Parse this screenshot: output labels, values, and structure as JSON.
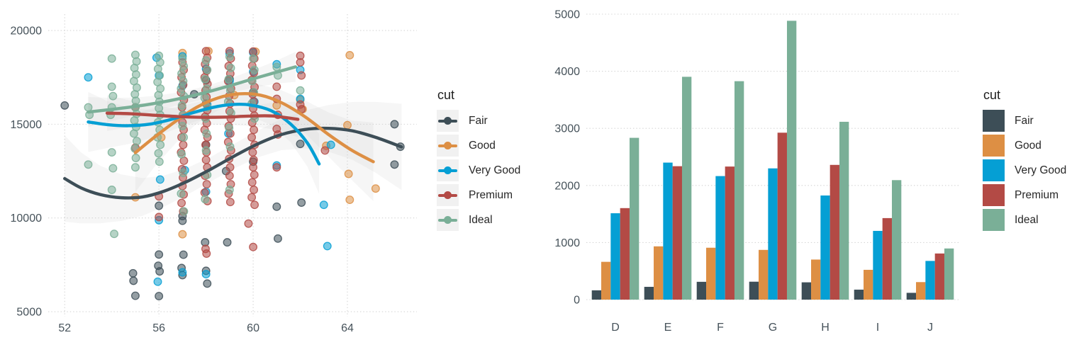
{
  "chart_data": [
    {
      "type": "scatter",
      "title": "",
      "xlabel": "",
      "ylabel": "",
      "xlim": [
        51.3,
        66.95
      ],
      "ylim": [
        4737,
        20870
      ],
      "xticks": [
        52,
        56,
        60,
        64
      ],
      "yticks": [
        5000,
        10000,
        15000,
        20000
      ],
      "grid": "dotted",
      "legend_title": "cut",
      "legend_position": "right",
      "series": [
        {
          "name": "Fair",
          "color": "#3D4E57",
          "points": [
            [
              52.0,
              16000
            ],
            [
              54.9,
              7050
            ],
            [
              54.92,
              6650
            ],
            [
              55.0,
              5850
            ],
            [
              56.0,
              10650
            ],
            [
              56.0,
              8050
            ],
            [
              55.97,
              7450
            ],
            [
              56.03,
              7150
            ],
            [
              56.0,
              5830
            ],
            [
              57.0,
              10100
            ],
            [
              57.0,
              9850
            ],
            [
              57.04,
              8040
            ],
            [
              56.96,
              7330
            ],
            [
              57.0,
              6950
            ],
            [
              57.5,
              16600
            ],
            [
              58.0,
              17350
            ],
            [
              58.0,
              13900
            ],
            [
              57.96,
              8700
            ],
            [
              58.0,
              7180
            ],
            [
              58.05,
              6500
            ],
            [
              59.0,
              17400
            ],
            [
              58.85,
              12500
            ],
            [
              58.9,
              8700
            ],
            [
              60.0,
              16700
            ],
            [
              60.0,
              13000
            ],
            [
              61.0,
              10600
            ],
            [
              61.05,
              8900
            ],
            [
              62.0,
              13950
            ],
            [
              62.05,
              10820
            ],
            [
              66.0,
              15000
            ],
            [
              66.25,
              13800
            ],
            [
              66.0,
              12850
            ]
          ],
          "columns": [],
          "smooth": [
            [
              52.0,
              12100
            ],
            [
              52.7,
              11600
            ],
            [
              53.5,
              11250
            ],
            [
              54.4,
              11080
            ],
            [
              55.3,
              11120
            ],
            [
              56.2,
              11420
            ],
            [
              57.2,
              11950
            ],
            [
              58.2,
              12600
            ],
            [
              59.2,
              13300
            ],
            [
              60.2,
              13950
            ],
            [
              61.2,
              14450
            ],
            [
              62.2,
              14720
            ],
            [
              63.2,
              14780
            ],
            [
              64.2,
              14650
            ],
            [
              65.2,
              14300
            ],
            [
              66.3,
              13790
            ]
          ],
          "ribbon": {
            "mid": 650,
            "end": 2300
          }
        },
        {
          "name": "Good",
          "color": "#DD8F44",
          "points": [
            [
              55.0,
              11100
            ],
            [
              56.1,
              14300
            ],
            [
              57.0,
              18800
            ],
            [
              57.0,
              9130
            ],
            [
              58.1,
              18900
            ],
            [
              59.2,
              16550
            ],
            [
              60.1,
              18870
            ],
            [
              61.0,
              16000
            ],
            [
              62.0,
              16300
            ],
            [
              62.1,
              15800
            ],
            [
              63.1,
              13850
            ],
            [
              64.1,
              18680
            ],
            [
              64.0,
              14950
            ],
            [
              64.05,
              12350
            ],
            [
              64.1,
              10970
            ],
            [
              65.2,
              11570
            ]
          ],
          "columns": [],
          "smooth": [
            [
              55.0,
              13480
            ],
            [
              55.8,
              14300
            ],
            [
              56.7,
              15150
            ],
            [
              57.6,
              15900
            ],
            [
              58.5,
              16400
            ],
            [
              59.4,
              16620
            ],
            [
              60.3,
              16550
            ],
            [
              61.2,
              16150
            ],
            [
              62.2,
              15400
            ],
            [
              63.2,
              14450
            ],
            [
              64.2,
              13600
            ],
            [
              65.1,
              13000
            ]
          ],
          "ribbon": {
            "mid": 550,
            "end": 2100
          }
        },
        {
          "name": "Very Good",
          "color": "#059FD4",
          "points": [
            [
              53.0,
              17500
            ],
            [
              55.9,
              18550
            ],
            [
              56.0,
              17600
            ],
            [
              56.05,
              12050
            ],
            [
              56.0,
              9880
            ],
            [
              55.95,
              6600
            ],
            [
              57.0,
              18620
            ],
            [
              57.0,
              17050
            ],
            [
              57.1,
              12550
            ],
            [
              57.0,
              7100
            ],
            [
              58.0,
              17950
            ],
            [
              58.05,
              16050
            ],
            [
              58.0,
              11400
            ],
            [
              58.0,
              7000
            ],
            [
              59.0,
              18780
            ],
            [
              59.0,
              17300
            ],
            [
              58.95,
              14500
            ],
            [
              60.0,
              18820
            ],
            [
              60.0,
              17800
            ],
            [
              60.05,
              16200
            ],
            [
              61.0,
              18200
            ],
            [
              61.0,
              12800
            ],
            [
              62.0,
              17900
            ],
            [
              62.0,
              16350
            ],
            [
              63.0,
              10700
            ],
            [
              63.15,
              8500
            ],
            [
              63.3,
              13900
            ]
          ],
          "columns": [],
          "smooth": [
            [
              53.0,
              15120
            ],
            [
              53.8,
              14980
            ],
            [
              54.7,
              14920
            ],
            [
              55.6,
              15000
            ],
            [
              56.5,
              15250
            ],
            [
              57.4,
              15600
            ],
            [
              58.3,
              15900
            ],
            [
              59.1,
              16050
            ],
            [
              59.9,
              16020
            ],
            [
              60.8,
              15700
            ],
            [
              61.6,
              15000
            ],
            [
              62.3,
              14000
            ],
            [
              62.8,
              12880
            ]
          ],
          "ribbon": {
            "mid": 480,
            "end": 1600
          }
        },
        {
          "name": "Premium",
          "color": "#B34A45",
          "points": [
            [
              55.0,
              15900
            ],
            [
              55.0,
              13750
            ],
            [
              56.0,
              11150
            ],
            [
              56.0,
              10050
            ],
            [
              59.8,
              9700
            ],
            [
              60.0,
              8450
            ],
            [
              61.0,
              17000
            ],
            [
              61.0,
              16350
            ],
            [
              61.05,
              15500
            ],
            [
              61.0,
              14750
            ],
            [
              61.05,
              14450
            ],
            [
              61.0,
              12700
            ],
            [
              62.0,
              18650
            ],
            [
              62.0,
              18300
            ],
            [
              62.05,
              17600
            ],
            [
              62.0,
              16050
            ],
            [
              62.05,
              15800
            ],
            [
              63.05,
              13600
            ]
          ],
          "columns": [
            {
              "x": 57.0,
              "ys": [
                18300,
                17900,
                17500,
                17100,
                16700,
                16300,
                15900,
                15500,
                15100,
                14700,
                14300,
                13900,
                13500,
                13050,
                12600,
                12150,
                11700,
                11250,
                10800,
                10350
              ]
            },
            {
              "x": 58.0,
              "ys": [
                18900,
                18550,
                18200,
                17850,
                17500,
                17150,
                16800,
                16450,
                16100,
                15750,
                15400,
                15050,
                14700,
                14300,
                13900,
                13500,
                13100,
                12700,
                12250,
                11800,
                11350,
                10900,
                8350,
                8100
              ]
            },
            {
              "x": 59.0,
              "ys": [
                18900,
                18500,
                18100,
                17700,
                17300,
                16900,
                16500,
                16100,
                15700,
                15300,
                14900,
                14500,
                14050,
                13600,
                13150,
                12700,
                12250,
                11800,
                11300,
                10850
              ]
            },
            {
              "x": 60.0,
              "ys": [
                18880,
                18500,
                18120,
                17740,
                17360,
                16980,
                16600,
                16220,
                15840,
                15460,
                15080,
                14700,
                14300,
                13900,
                13500,
                13100,
                12700,
                12300,
                11900,
                11500,
                11100,
                10700
              ]
            }
          ],
          "smooth": [
            [
              53.8,
              15590
            ],
            [
              54.8,
              15560
            ],
            [
              55.8,
              15480
            ],
            [
              56.8,
              15410
            ],
            [
              57.8,
              15370
            ],
            [
              58.8,
              15380
            ],
            [
              59.8,
              15430
            ],
            [
              60.8,
              15440
            ],
            [
              61.9,
              15260
            ]
          ],
          "ribbon": {
            "mid": 380,
            "end": 950
          }
        },
        {
          "name": "Ideal",
          "color": "#7AAF97",
          "points": [
            [
              53.0,
              15900
            ],
            [
              53.05,
              15500
            ],
            [
              53.0,
              12850
            ],
            [
              54.0,
              18500
            ],
            [
              54.0,
              17000
            ],
            [
              54.05,
              16500
            ],
            [
              54.0,
              15900
            ],
            [
              53.95,
              15500
            ],
            [
              54.0,
              13500
            ],
            [
              54.05,
              12650
            ],
            [
              54.0,
              11500
            ],
            [
              54.1,
              9150
            ],
            [
              61.0,
              18050
            ],
            [
              61.05,
              17600
            ],
            [
              62.0,
              16800
            ]
          ],
          "columns": [
            {
              "x": 55.0,
              "ys": [
                18700,
                18350,
                18000,
                17650,
                17300,
                16950,
                16600,
                16250,
                15900,
                15550,
                15200,
                14850,
                14500,
                14100,
                13700,
                13200,
                12700
              ]
            },
            {
              "x": 56.0,
              "ys": [
                18650,
                18300,
                17950,
                17600,
                17250,
                16900,
                16550,
                16200,
                15850,
                15500,
                15100,
                14700,
                14300,
                13900,
                13450,
                13000
              ]
            },
            {
              "x": 57.0,
              "ys": [
                18500,
                18100,
                17700,
                17300,
                16900,
                16500,
                16000,
                15500,
                14900,
                14300,
                13400,
                12400,
                11300,
                10350
              ]
            },
            {
              "x": 58.0,
              "ys": [
                18400,
                17900,
                17400,
                16900,
                16400,
                15900,
                15300,
                14500,
                13600,
                12300,
                11000
              ]
            },
            {
              "x": 59.0,
              "ys": [
                18600,
                18000,
                17400,
                16800,
                16200,
                15600,
                14800,
                13800,
                11500
              ]
            },
            {
              "x": 60.0,
              "ys": [
                18500,
                17900,
                17300,
                16700,
                16100,
                15300
              ]
            }
          ],
          "smooth": [
            [
              53.0,
              15650
            ],
            [
              54.0,
              15790
            ],
            [
              55.0,
              15950
            ],
            [
              56.0,
              16150
            ],
            [
              57.0,
              16400
            ],
            [
              58.0,
              16700
            ],
            [
              59.0,
              17050
            ],
            [
              60.0,
              17420
            ],
            [
              61.0,
              17780
            ],
            [
              61.8,
              18060
            ]
          ],
          "ribbon": {
            "mid": 330,
            "end": 800
          }
        }
      ]
    },
    {
      "type": "bar",
      "title": "",
      "xlabel": "",
      "ylabel": "",
      "categories": [
        "D",
        "E",
        "F",
        "G",
        "H",
        "I",
        "J"
      ],
      "ylim": [
        0,
        5000
      ],
      "yticks": [
        0,
        1000,
        2000,
        3000,
        4000,
        5000
      ],
      "grid": "dotted",
      "legend_title": "cut",
      "legend_position": "right",
      "series": [
        {
          "name": "Fair",
          "color": "#3D4E57",
          "values": [
            163,
            224,
            312,
            314,
            303,
            175,
            119
          ]
        },
        {
          "name": "Good",
          "color": "#DD8F44",
          "values": [
            662,
            933,
            909,
            871,
            702,
            522,
            307
          ]
        },
        {
          "name": "Very Good",
          "color": "#059FD4",
          "values": [
            1513,
            2400,
            2164,
            2299,
            1824,
            1204,
            678
          ]
        },
        {
          "name": "Premium",
          "color": "#B34A45",
          "values": [
            1603,
            2337,
            2331,
            2924,
            2360,
            1428,
            808
          ]
        },
        {
          "name": "Ideal",
          "color": "#7AAF97",
          "values": [
            2834,
            3903,
            3826,
            4884,
            3115,
            2093,
            896
          ]
        }
      ]
    }
  ],
  "style": {
    "grid_color": "#d4d4d4",
    "axis_text_color": "#46525a",
    "ribbon_color": "#cfcfcf",
    "legend_key_bg": "#f1f1f1"
  }
}
